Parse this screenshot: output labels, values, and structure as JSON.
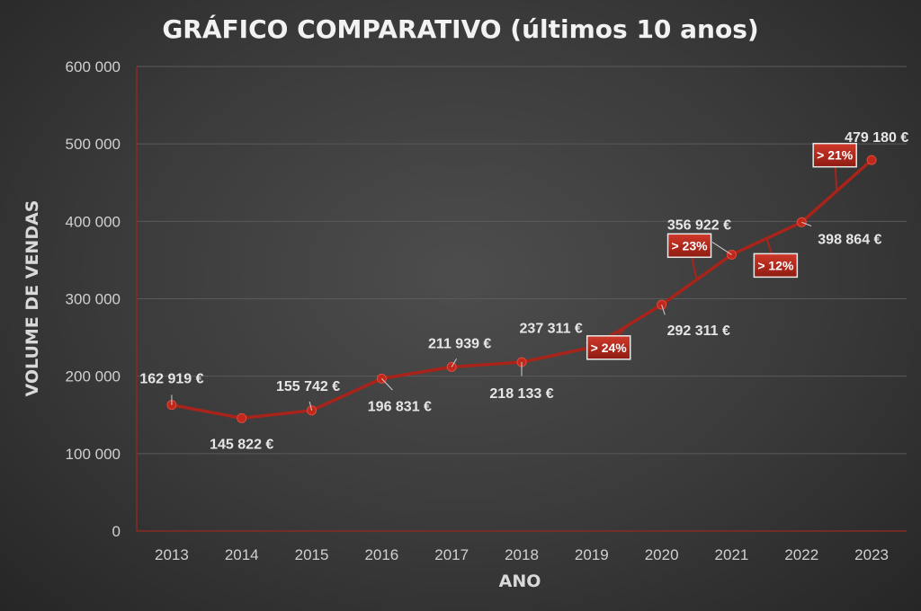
{
  "chart_data": {
    "type": "line",
    "title": "GRÁFICO COMPARATIVO (últimos 10 anos)",
    "xlabel": "ANO",
    "ylabel": "VOLUME DE VENDAS",
    "ylim": [
      0,
      600000
    ],
    "yticks": [
      0,
      100000,
      200000,
      300000,
      400000,
      500000,
      600000
    ],
    "ytick_labels": [
      "0",
      "100 000",
      "200 000",
      "300 000",
      "400 000",
      "500 000",
      "600 000"
    ],
    "grid": true,
    "categories": [
      "2013",
      "2014",
      "2015",
      "2016",
      "2017",
      "2018",
      "2019",
      "2020",
      "2021",
      "2022",
      "2023"
    ],
    "series": [
      {
        "name": "Volume de vendas",
        "values": [
          162919,
          145822,
          155742,
          196831,
          211939,
          218133,
          237311,
          292311,
          356922,
          398864,
          479180
        ],
        "labels": [
          "162 919 €",
          "145 822 €",
          "155 742 €",
          "196 831 €",
          "211 939 €",
          "218 133 €",
          "237 311 €",
          "292 311 €",
          "356 922 €",
          "398 864 €",
          "479 180 €"
        ]
      }
    ],
    "annotations": [
      {
        "text": "> 24%",
        "between": [
          "2019",
          "2020"
        ]
      },
      {
        "text": "> 23%",
        "between": [
          "2020",
          "2021"
        ]
      },
      {
        "text": "> 12%",
        "between": [
          "2021",
          "2022"
        ]
      },
      {
        "text": "> 21%",
        "between": [
          "2022",
          "2023"
        ]
      }
    ]
  },
  "colors": {
    "line": "#a8241a",
    "marker": "#c0281c",
    "badge_top": "#d0392a",
    "badge_bottom": "#8e1c12",
    "grid": "#5a5a5a",
    "axis": "#8a2a22"
  }
}
